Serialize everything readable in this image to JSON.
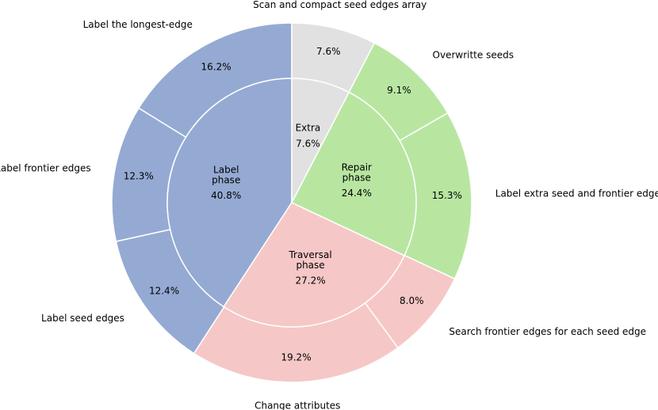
{
  "chart_data": {
    "type": "pie",
    "style": "nested-donut",
    "inner": [
      {
        "name": "Label\nphase",
        "value": 40.8,
        "pct_label": "40.8%",
        "color": "#95aad3"
      },
      {
        "name": "Traversal\nphase",
        "value": 27.2,
        "pct_label": "27.2%",
        "color": "#f6c7c7"
      },
      {
        "name": "Repair\nphase",
        "value": 24.4,
        "pct_label": "24.4%",
        "color": "#b8e6a1"
      },
      {
        "name": "Extra",
        "value": 7.6,
        "pct_label": "7.6%",
        "color": "#e1e1e1"
      }
    ],
    "outer": [
      {
        "name": "Label the longest-edge",
        "value": 16.2,
        "pct_label": "16.2%",
        "color": "#95aad3"
      },
      {
        "name": "Label frontier edges",
        "value": 12.3,
        "pct_label": "12.3%",
        "color": "#95aad3"
      },
      {
        "name": "Label seed edges",
        "value": 12.4,
        "pct_label": "12.4%",
        "color": "#95aad3"
      },
      {
        "name": "Change attributes",
        "value": 19.2,
        "pct_label": "19.2%",
        "color": "#f6c7c7"
      },
      {
        "name": "Search frontier edges for each seed edge",
        "value": 8.0,
        "pct_label": "8.0%",
        "color": "#f6c7c7"
      },
      {
        "name": "Label extra seed and frontier edges",
        "value": 15.3,
        "pct_label": "15.3%",
        "color": "#b8e6a1"
      },
      {
        "name": "Overwritte seeds",
        "value": 9.1,
        "pct_label": "9.1%",
        "color": "#b8e6a1"
      },
      {
        "name": "Scan and compact seed edges array",
        "value": 7.6,
        "pct_label": "7.6%",
        "color": "#e1e1e1"
      }
    ],
    "start_angle": "top",
    "direction": "counterclockwise"
  }
}
